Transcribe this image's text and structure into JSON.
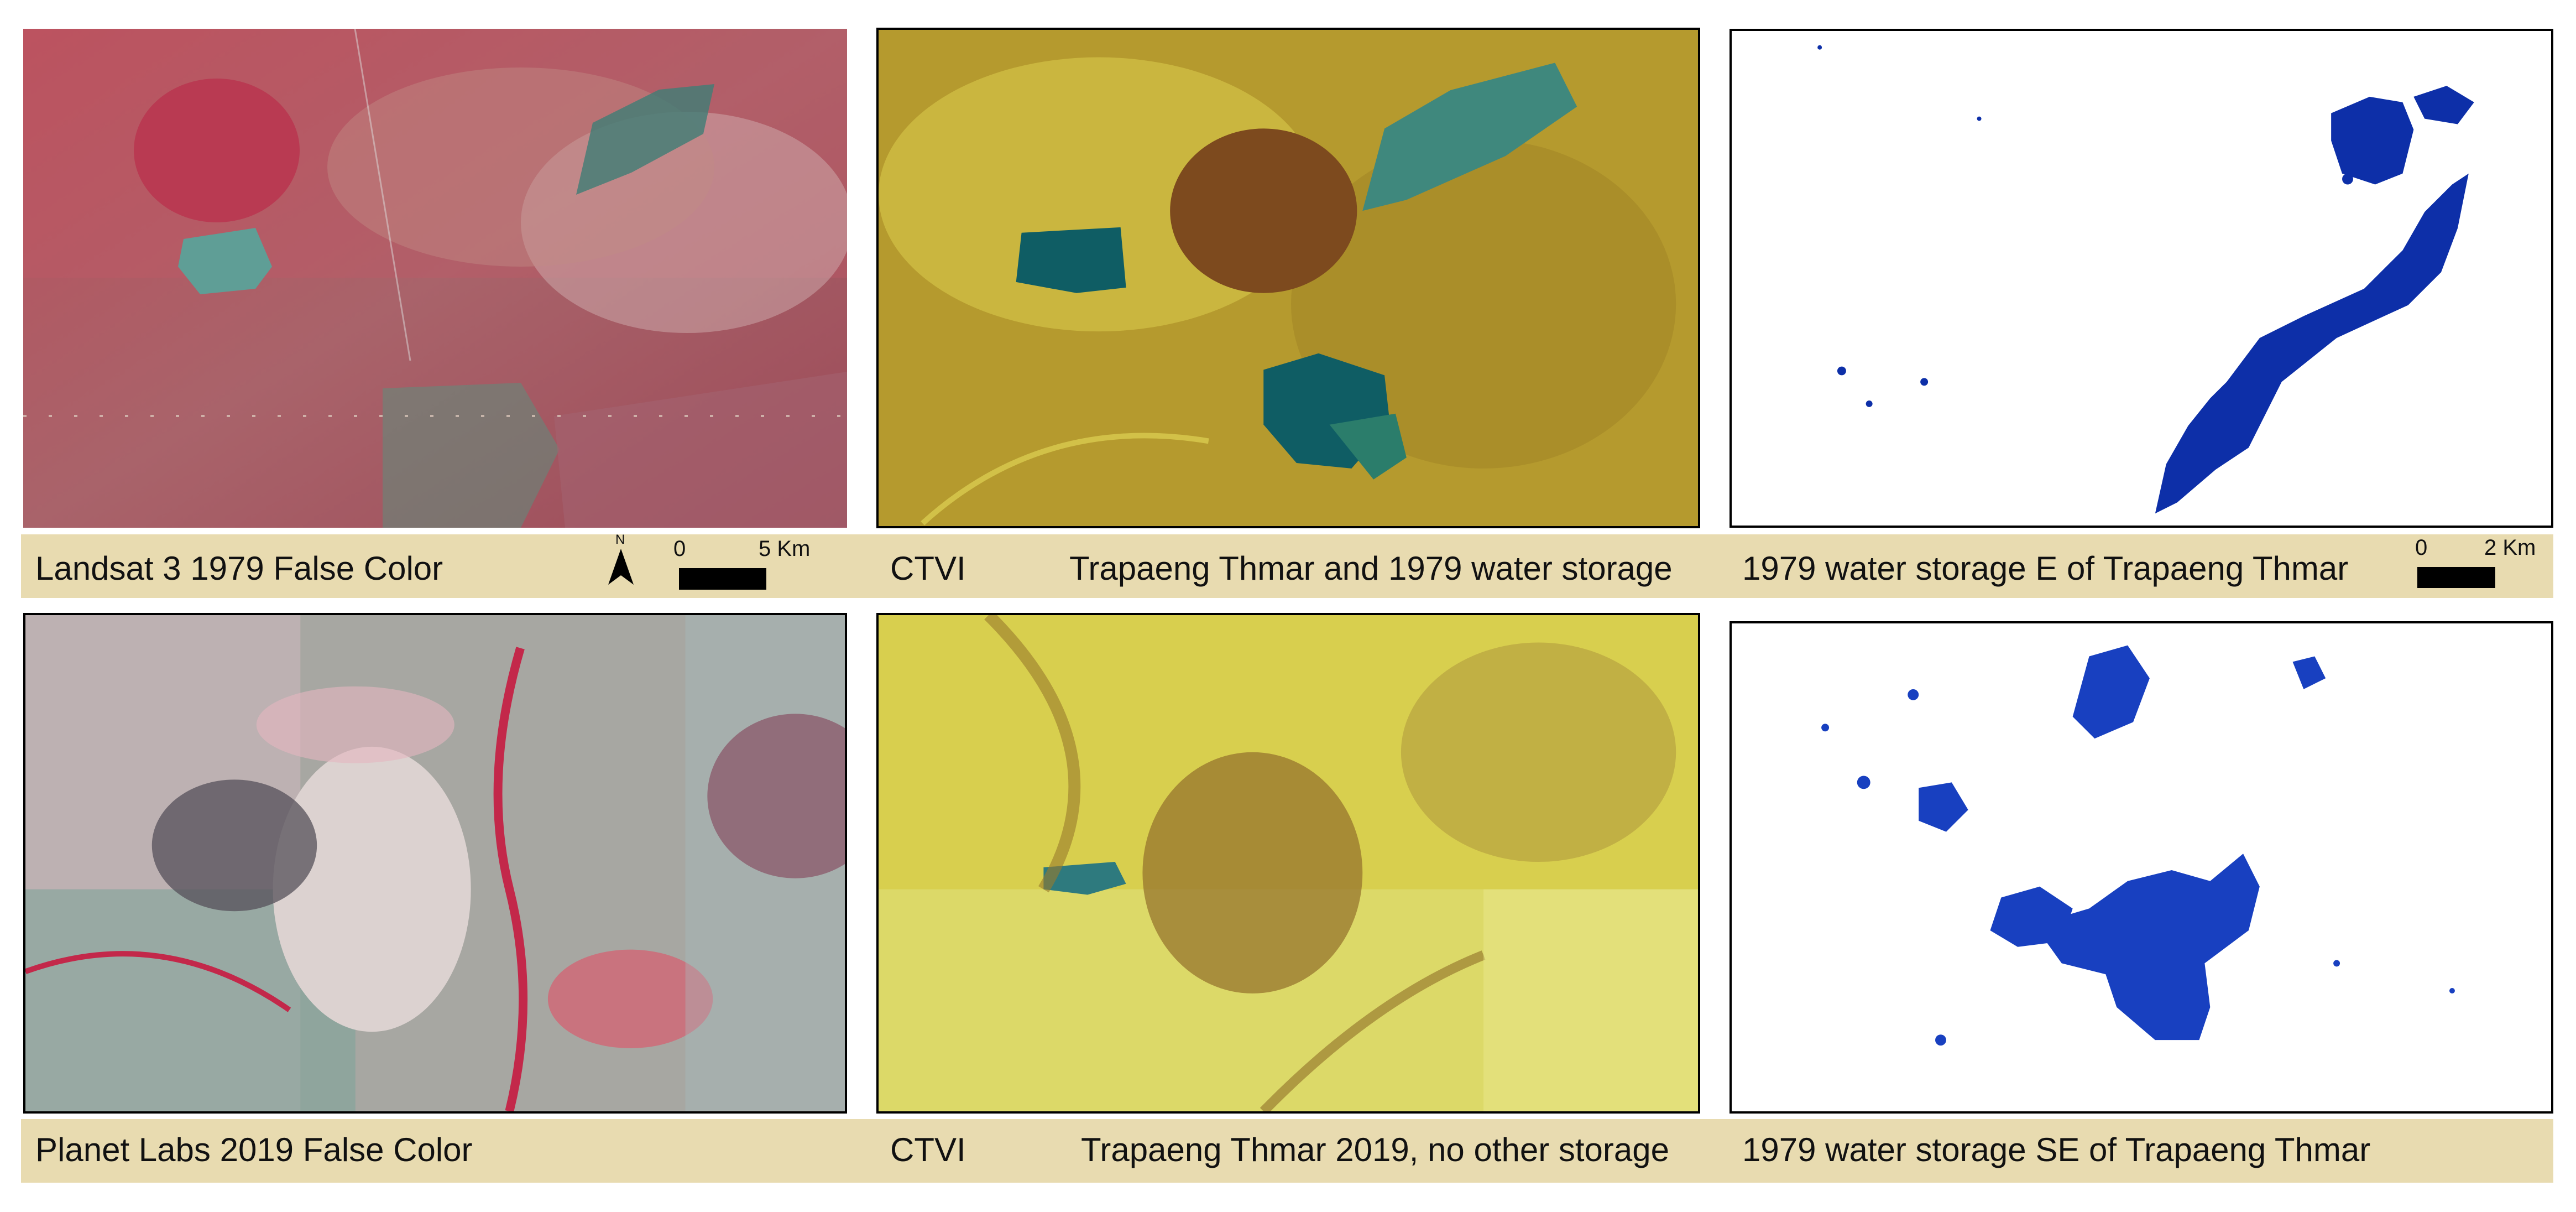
{
  "top_row": {
    "landsat_label": "Landsat 3  1979 False Color",
    "ctvi_label": "CTVI",
    "ctvi_title": "Trapaeng Thmar and 1979 water storage",
    "water_title": "1979  water storage E of Trapaeng Thmar"
  },
  "bottom_row": {
    "planet_label": "Planet Labs  2019 False Color",
    "ctvi_label": "CTVI",
    "ctvi_title": "Trapaeng Thmar 2019, no other storage",
    "water_title": "1979  water storage SE of Trapaeng Thmar"
  },
  "north_arrow": {
    "letter": "N"
  },
  "scalebar_left": {
    "start": "0",
    "end": "5 Km"
  },
  "scalebar_right": {
    "start": "0",
    "end": "2 Km"
  },
  "colors": {
    "caption_band": "#e8dbb0",
    "water_blue": "#0d2fa8",
    "false_color_red": "#b44a55",
    "ctvi_yellow": "#c9b43a",
    "ctvi_water": "#0f5d64"
  }
}
